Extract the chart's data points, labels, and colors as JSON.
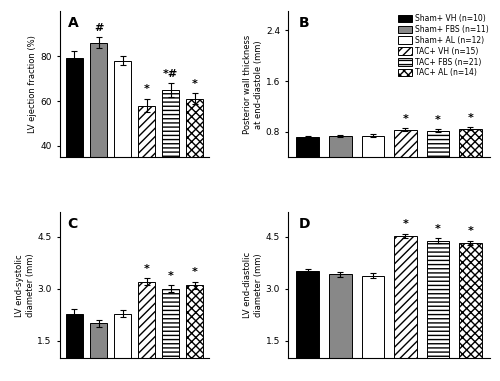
{
  "legend_labels": [
    "Sham+ VH (n=10)",
    "Sham+ FBS (n=11)",
    "Sham+ AL (n=12)",
    "TAC+ VH (n=15)",
    "TAC+ FBS (n=21)",
    "TAC+ AL (n=14)"
  ],
  "A_values": [
    79,
    86,
    78,
    58,
    65,
    61
  ],
  "A_errors": [
    3.5,
    2.5,
    2.0,
    3.0,
    3.0,
    2.5
  ],
  "A_ylabel": "LV ejection fraction (%)",
  "A_ylim": [
    35,
    100
  ],
  "A_yticks": [
    40,
    60,
    80
  ],
  "A_annot": [
    "",
    "#",
    "",
    "*",
    "*#",
    "*"
  ],
  "B_values": [
    0.72,
    0.73,
    0.74,
    0.83,
    0.82,
    0.85
  ],
  "B_errors": [
    0.02,
    0.02,
    0.02,
    0.025,
    0.025,
    0.025
  ],
  "B_ylabel": "Posterior wall thickness\nat end-diastole (mm)",
  "B_ylim": [
    0.4,
    2.7
  ],
  "B_yticks": [
    0.8,
    1.6,
    2.4
  ],
  "B_annot": [
    "",
    "",
    "",
    "*",
    "*",
    "*"
  ],
  "C_values": [
    2.28,
    2.0,
    2.28,
    3.2,
    3.0,
    3.1
  ],
  "C_errors": [
    0.13,
    0.1,
    0.1,
    0.1,
    0.1,
    0.1
  ],
  "C_ylabel": "LV end-systolic\ndiameter (mm)",
  "C_ylim": [
    1.0,
    5.2
  ],
  "C_yticks": [
    1.5,
    3.0,
    4.5
  ],
  "C_annot": [
    "",
    "",
    "",
    "*",
    "*",
    "*"
  ],
  "D_values": [
    3.5,
    3.42,
    3.38,
    4.52,
    4.38,
    4.32
  ],
  "D_errors": [
    0.08,
    0.07,
    0.07,
    0.07,
    0.07,
    0.07
  ],
  "D_ylabel": "LV end-diastolic\ndiameter (mm)",
  "D_ylim": [
    1.0,
    5.2
  ],
  "D_yticks": [
    1.5,
    3.0,
    4.5
  ],
  "D_annot": [
    "",
    "",
    "",
    "*",
    "*",
    "*"
  ]
}
